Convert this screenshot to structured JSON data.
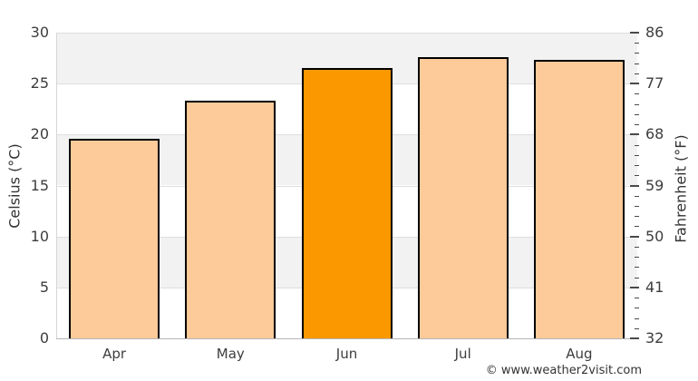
{
  "chart_data": {
    "type": "bar",
    "title": "",
    "categories": [
      "Apr",
      "May",
      "Jun",
      "Jul",
      "Aug"
    ],
    "values": [
      19.6,
      23.3,
      26.5,
      27.6,
      27.3
    ],
    "unit": "°C",
    "highlight_index": 2,
    "ylabel_left": "Celsius (°C)",
    "ylabel_right": "Fahrenheit (°F)",
    "y_left_ticks": [
      0,
      5,
      10,
      15,
      20,
      25,
      30
    ],
    "y_right_ticks": [
      32,
      41,
      50,
      59,
      68,
      77,
      86
    ],
    "ylim_celsius": [
      0,
      30
    ],
    "minor_tick_step_celsius": 1,
    "grid": true,
    "legend": false,
    "colors": {
      "bar_fill": "#FDCA99",
      "bar_highlight_fill": "#FB9800",
      "bar_border": "#000000",
      "band_gray": "#F2F2F2",
      "band_white": "#FFFFFF"
    }
  },
  "watermark": {
    "label": "© www.weather2visit.com"
  }
}
